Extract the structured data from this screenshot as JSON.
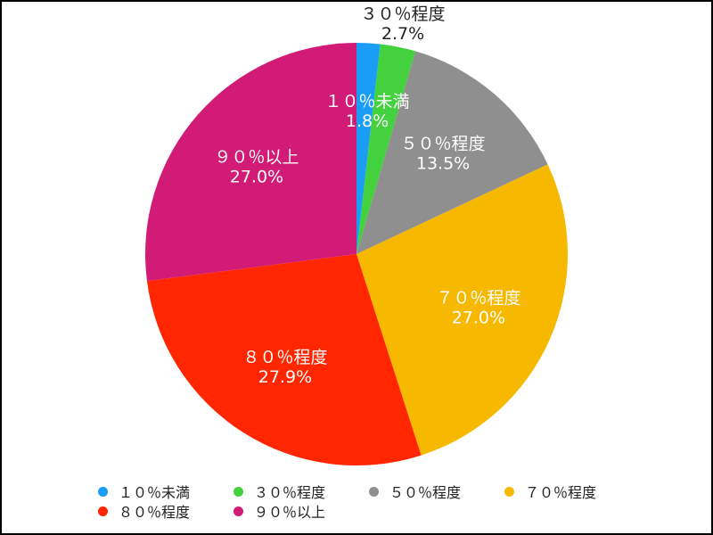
{
  "chart_data": {
    "type": "pie",
    "title": "",
    "slices": [
      {
        "label": "１０％未満",
        "value": 1.8,
        "value_label": "1.8%",
        "color": "#1a9ef5"
      },
      {
        "label": "３０％程度",
        "value": 2.7,
        "value_label": "2.7%",
        "color": "#44d13e"
      },
      {
        "label": "５０％程度",
        "value": 13.5,
        "value_label": "13.5%",
        "color": "#8f8f8f"
      },
      {
        "label": "７０％程度",
        "value": 27.0,
        "value_label": "27.0%",
        "color": "#f7b800"
      },
      {
        "label": "８０％程度",
        "value": 27.9,
        "value_label": "27.9%",
        "color": "#ff2600"
      },
      {
        "label": "９０％以上",
        "value": 27.0,
        "value_label": "27.0%",
        "color": "#d21b76"
      }
    ],
    "legend_position": "bottom"
  }
}
